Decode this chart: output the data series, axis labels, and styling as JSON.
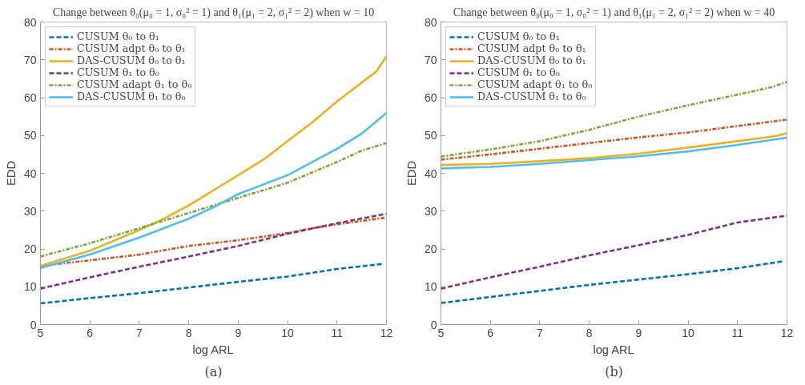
{
  "chart_data": [
    {
      "type": "line",
      "title": "Change between θ₀(μ₀ = 1, σ₀² = 1) and θ₁(μ₁ = 2, σ₁² = 2) when w = 10",
      "xlabel": "log ARL",
      "ylabel": "EDD",
      "annotations": [
        "(a)"
      ],
      "xlim": [
        5,
        12
      ],
      "ylim": [
        0,
        80
      ],
      "xticks": [
        5,
        6,
        7,
        8,
        9,
        10,
        11,
        12
      ],
      "yticks": [
        0,
        10,
        20,
        30,
        40,
        50,
        60,
        70,
        80
      ],
      "grid": false,
      "legend": "top left",
      "marker": "none",
      "series": [
        {
          "name": "CUSUM θ₀ to θ₁",
          "color": "#0072bd",
          "line_style": "dashed",
          "x": [
            5,
            6,
            7,
            8,
            9,
            10,
            11,
            11.9
          ],
          "values": [
            5.6,
            7,
            8.3,
            9.8,
            11.3,
            12.7,
            14.7,
            16
          ]
        },
        {
          "name": "CUSUM adpt θ₀ to θ₁",
          "color": "#d95319",
          "line_style": "dashdot",
          "x": [
            5,
            6,
            7,
            8,
            9,
            10,
            10.5,
            11,
            12
          ],
          "values": [
            15.5,
            17,
            18.5,
            20.8,
            22.3,
            24.2,
            25.5,
            26.5,
            28.3
          ]
        },
        {
          "name": "DAS-CUSUM θ₀ to θ₁",
          "color": "#edb120",
          "line_style": "solid",
          "x": [
            5,
            6,
            7,
            7.5,
            8,
            8.5,
            9,
            9.5,
            10,
            10.5,
            11,
            11.5,
            11.8,
            12
          ],
          "values": [
            15.5,
            19.5,
            25,
            28,
            31.5,
            35.5,
            39.5,
            43.5,
            48.5,
            53.5,
            59,
            64,
            67,
            71
          ]
        },
        {
          "name": "CUSUM θ₁ to θ₀",
          "color": "#7e2f8e",
          "line_style": "dashed",
          "x": [
            5,
            6,
            7,
            8,
            9,
            10,
            11,
            12
          ],
          "values": [
            9.5,
            12.5,
            15.3,
            18,
            20.8,
            24,
            26.8,
            29.3
          ]
        },
        {
          "name": "CUSUM adapt θ₁ to θ₀",
          "color": "#77ac30",
          "line_style": "dashdot",
          "x": [
            5,
            6,
            7,
            8,
            9,
            10,
            11,
            11.5,
            12
          ],
          "values": [
            18,
            21.5,
            25.5,
            29.5,
            33.5,
            37.5,
            43,
            46,
            48
          ]
        },
        {
          "name": "DAS-CUSUM θ₁ to θ₀",
          "color": "#4dbeee",
          "line_style": "solid",
          "x": [
            5,
            6,
            7,
            8,
            8.5,
            9,
            10,
            11,
            11.5,
            12
          ],
          "values": [
            15,
            18.5,
            23,
            28,
            31,
            34.5,
            39.5,
            46.5,
            50.5,
            56
          ]
        }
      ]
    },
    {
      "type": "line",
      "title": "Change between θ₀(μ₀ = 1, σ₀² = 1) and θ₁(μ₁ = 2, σ₁² = 2) when w = 40",
      "xlabel": "log ARL",
      "ylabel": "EDD",
      "annotations": [
        "(b)"
      ],
      "xlim": [
        5,
        12
      ],
      "ylim": [
        0,
        80
      ],
      "xticks": [
        5,
        6,
        7,
        8,
        9,
        10,
        11,
        12
      ],
      "yticks": [
        0,
        10,
        20,
        30,
        40,
        50,
        60,
        70,
        80
      ],
      "grid": false,
      "legend": "top left",
      "marker": "none",
      "series": [
        {
          "name": "CUSUM θ₀ to θ₁",
          "color": "#0072bd",
          "line_style": "dashed",
          "x": [
            5,
            6,
            7,
            8,
            9,
            10,
            11,
            11.9
          ],
          "values": [
            5.7,
            7.3,
            8.9,
            10.5,
            11.9,
            13.3,
            14.9,
            16.7
          ]
        },
        {
          "name": "CUSUM adpt θ₀ to θ₁",
          "color": "#d95319",
          "line_style": "dashdot",
          "x": [
            5,
            6,
            7,
            8,
            9,
            10,
            11,
            12
          ],
          "values": [
            43.6,
            45,
            46.5,
            48,
            49.5,
            50.8,
            52.5,
            54.2
          ]
        },
        {
          "name": "DAS-CUSUM θ₀ to θ₁",
          "color": "#edb120",
          "line_style": "solid",
          "x": [
            5,
            6,
            7,
            8,
            9,
            10,
            11,
            11.8,
            12
          ],
          "values": [
            42.2,
            42.5,
            43.2,
            44,
            45.2,
            46.8,
            48.5,
            49.9,
            50.6
          ]
        },
        {
          "name": "CUSUM θ₁ to θ₀",
          "color": "#7e2f8e",
          "line_style": "dashed",
          "x": [
            5,
            6,
            7,
            8,
            9,
            10,
            11,
            12
          ],
          "values": [
            9.5,
            12.5,
            15.3,
            18.3,
            21,
            23.7,
            27,
            28.8
          ]
        },
        {
          "name": "CUSUM adapt θ₁ to θ₀",
          "color": "#77ac30",
          "line_style": "dashdot",
          "x": [
            5,
            6,
            7,
            8,
            9,
            10,
            11,
            11.7,
            12
          ],
          "values": [
            44.4,
            46.3,
            48.5,
            51.5,
            55,
            58,
            60.8,
            62.8,
            64.2
          ]
        },
        {
          "name": "DAS-CUSUM θ₁ to θ₀",
          "color": "#4dbeee",
          "line_style": "solid",
          "x": [
            5,
            6,
            7,
            8,
            9,
            10,
            11,
            12
          ],
          "values": [
            41.3,
            41.7,
            42.5,
            43.5,
            44.5,
            45.8,
            47.5,
            49.4
          ]
        }
      ]
    }
  ]
}
